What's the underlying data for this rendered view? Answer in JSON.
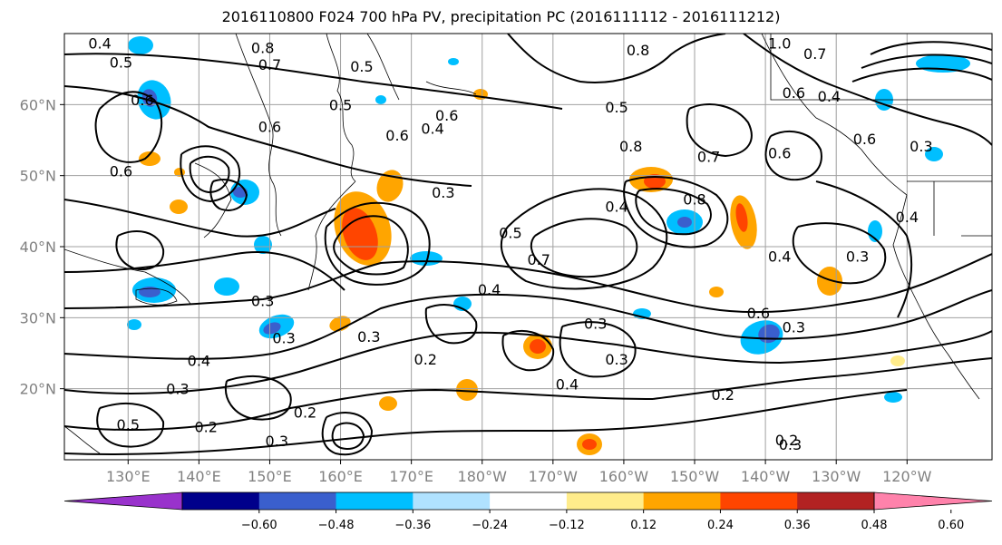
{
  "title": "2016110800 F024 700 hPa PV, precipitation PC (2016111112 - 2016111212)",
  "map": {
    "lon_labels": [
      "130°E",
      "140°E",
      "150°E",
      "160°E",
      "170°E",
      "180°W",
      "170°W",
      "160°W",
      "150°W",
      "140°W",
      "130°W",
      "120°W"
    ],
    "lon_values": [
      130,
      140,
      150,
      160,
      170,
      180,
      190,
      200,
      210,
      220,
      230,
      240
    ],
    "lat_labels": [
      "20°N",
      "30°N",
      "40°N",
      "50°N",
      "60°N"
    ],
    "lat_values": [
      20,
      30,
      40,
      50,
      60
    ],
    "lon_range": [
      121,
      252
    ],
    "lat_range": [
      10,
      70
    ],
    "grid": true,
    "contour_labels": [
      {
        "text": "0.4",
        "lon": 126,
        "lat": 68.5
      },
      {
        "text": "0.5",
        "lon": 129,
        "lat": 65.8
      },
      {
        "text": "0.8",
        "lon": 149,
        "lat": 67.8
      },
      {
        "text": "0.7",
        "lon": 150,
        "lat": 65.5
      },
      {
        "text": "0.5",
        "lon": 163,
        "lat": 65.2
      },
      {
        "text": "0.5",
        "lon": 160,
        "lat": 59.8
      },
      {
        "text": "0.6",
        "lon": 150,
        "lat": 56.7
      },
      {
        "text": "0.6",
        "lon": 175,
        "lat": 58.3
      },
      {
        "text": "0.6",
        "lon": 168,
        "lat": 55.5
      },
      {
        "text": "0.4",
        "lon": 173,
        "lat": 56.5
      },
      {
        "text": "0.6",
        "lon": 132,
        "lat": 60.5
      },
      {
        "text": "0.6",
        "lon": 129,
        "lat": 50.5
      },
      {
        "text": "0.3",
        "lon": 174.5,
        "lat": 47.5
      },
      {
        "text": "0.5",
        "lon": 184,
        "lat": 41.8
      },
      {
        "text": "0.4",
        "lon": 181,
        "lat": 33.8
      },
      {
        "text": "0.3",
        "lon": 149,
        "lat": 32.2
      },
      {
        "text": "0.3",
        "lon": 152,
        "lat": 27
      },
      {
        "text": "0.3",
        "lon": 164,
        "lat": 27.2
      },
      {
        "text": "0.2",
        "lon": 172,
        "lat": 24
      },
      {
        "text": "0.4",
        "lon": 140,
        "lat": 23.8
      },
      {
        "text": "0.3",
        "lon": 137,
        "lat": 19.8
      },
      {
        "text": "0.2",
        "lon": 141,
        "lat": 14.5
      },
      {
        "text": "0.5",
        "lon": 130,
        "lat": 14.8
      },
      {
        "text": "0.2",
        "lon": 155,
        "lat": 16.5
      },
      {
        "text": "0.3",
        "lon": 151,
        "lat": 12.5
      },
      {
        "text": "0.7",
        "lon": 188,
        "lat": 38
      },
      {
        "text": "0.3",
        "lon": 196,
        "lat": 29
      },
      {
        "text": "0.3",
        "lon": 199,
        "lat": 24
      },
      {
        "text": "0.4",
        "lon": 192,
        "lat": 20.5
      },
      {
        "text": "0.2",
        "lon": 214,
        "lat": 19
      },
      {
        "text": "0.2",
        "lon": 223,
        "lat": 12.6
      },
      {
        "text": "0.3",
        "lon": 223.5,
        "lat": 12.0
      },
      {
        "text": "0.6",
        "lon": 219,
        "lat": 30.5
      },
      {
        "text": "0.3",
        "lon": 224,
        "lat": 28.5
      },
      {
        "text": "0.4",
        "lon": 222,
        "lat": 38.5
      },
      {
        "text": "0.3",
        "lon": 233,
        "lat": 38.5
      },
      {
        "text": "0.6",
        "lon": 224,
        "lat": 61.5
      },
      {
        "text": "1.0",
        "lon": 222,
        "lat": 68.5
      },
      {
        "text": "0.7",
        "lon": 227,
        "lat": 67
      },
      {
        "text": "0.4",
        "lon": 229,
        "lat": 61
      },
      {
        "text": "0.6",
        "lon": 234,
        "lat": 55
      },
      {
        "text": "0.3",
        "lon": 242,
        "lat": 54
      },
      {
        "text": "0.8",
        "lon": 202,
        "lat": 67.5
      },
      {
        "text": "0.5",
        "lon": 199,
        "lat": 59.5
      },
      {
        "text": "0.8",
        "lon": 201,
        "lat": 54
      },
      {
        "text": "0.7",
        "lon": 212,
        "lat": 52.5
      },
      {
        "text": "0.6",
        "lon": 222,
        "lat": 53
      },
      {
        "text": "0.4",
        "lon": 199,
        "lat": 45.5
      },
      {
        "text": "0.8",
        "lon": 210,
        "lat": 46.5
      },
      {
        "text": "0.4",
        "lon": 240,
        "lat": 44
      }
    ]
  },
  "colorbar": {
    "labels": [
      "−0.60",
      "−0.48",
      "−0.36",
      "−0.24",
      "−0.12",
      "0.12",
      "0.24",
      "0.36",
      "0.48",
      "0.60"
    ],
    "colors": [
      "#9932cc",
      "#00008b",
      "#3a5fcd",
      "#00bfff",
      "#b0e2ff",
      "#ffffff",
      "#ffec8b",
      "#ffa500",
      "#ff4500",
      "#b22222",
      "#ff82ab"
    ]
  }
}
